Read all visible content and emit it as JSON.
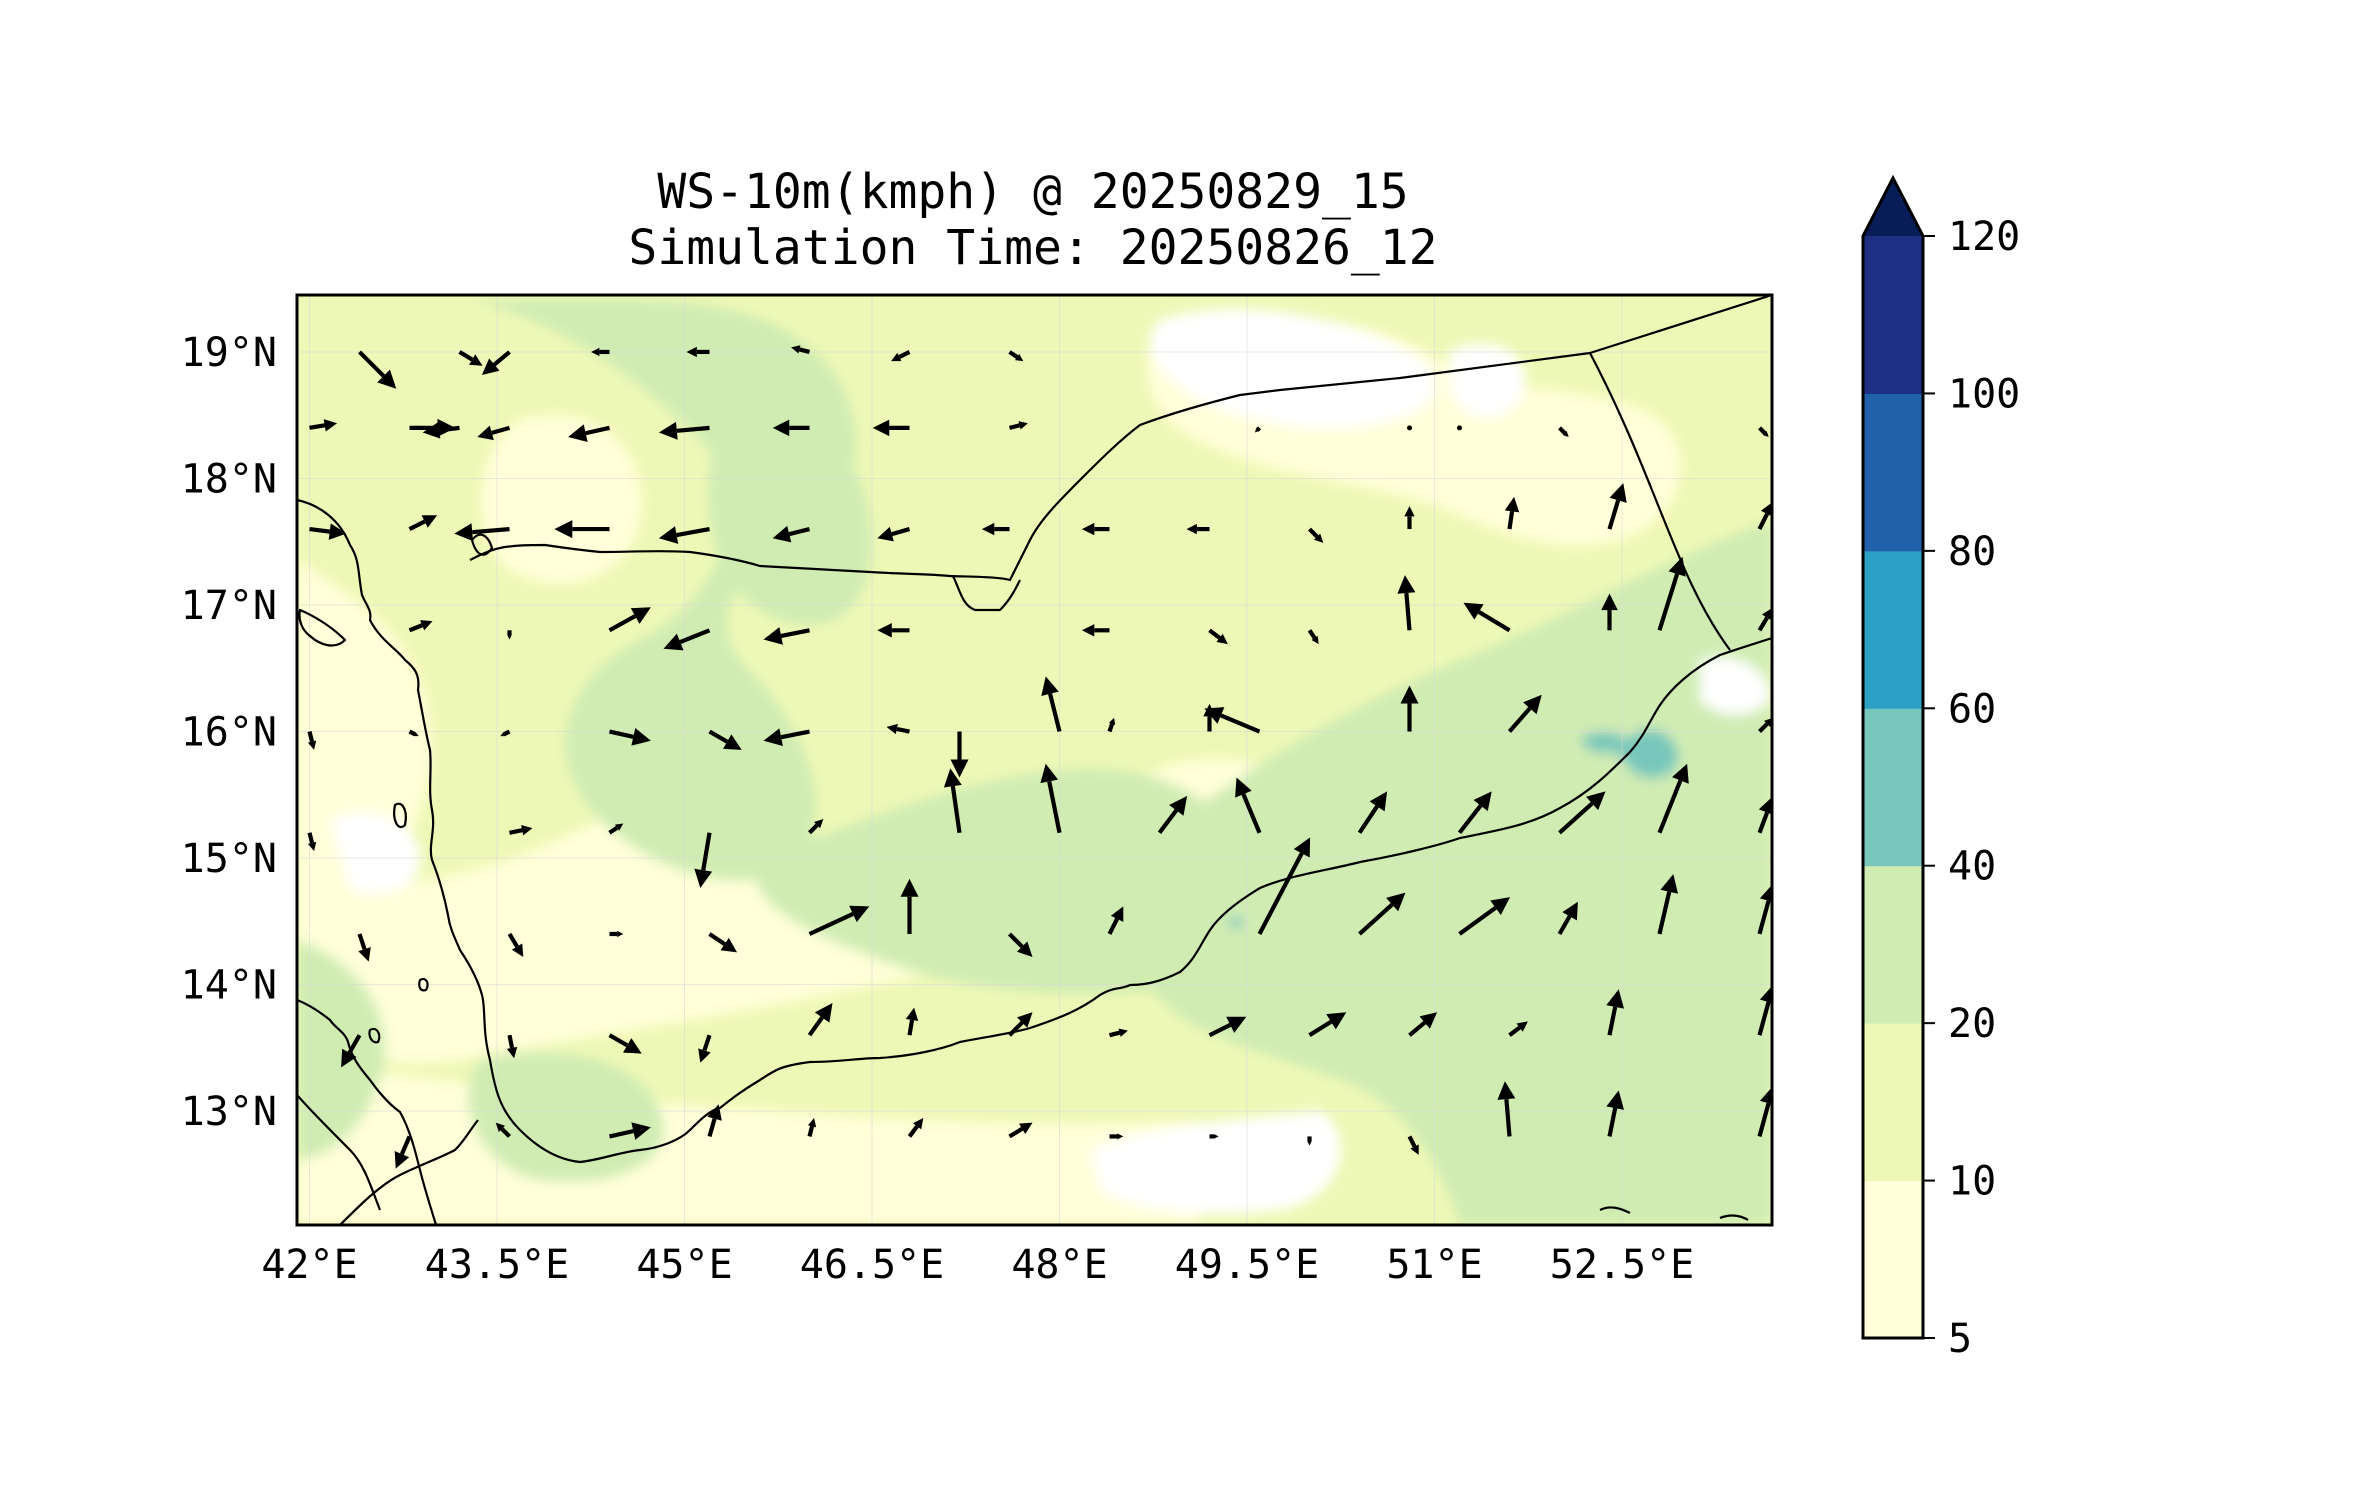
{
  "title": {
    "line1": "WS-10m(kmph) @ 20250829_15",
    "line2": "Simulation Time: 20250826_12"
  },
  "map": {
    "lon_range": [
      41.9,
      53.7
    ],
    "lat_range": [
      12.1,
      19.45
    ],
    "x_ticks": [
      {
        "value": 42.0,
        "label": "42°E"
      },
      {
        "value": 43.5,
        "label": "43.5°E"
      },
      {
        "value": 45.0,
        "label": "45°E"
      },
      {
        "value": 46.5,
        "label": "46.5°E"
      },
      {
        "value": 48.0,
        "label": "48°E"
      },
      {
        "value": 49.5,
        "label": "49.5°E"
      },
      {
        "value": 51.0,
        "label": "51°E"
      },
      {
        "value": 52.5,
        "label": "52.5°E"
      }
    ],
    "y_ticks": [
      {
        "value": 19.0,
        "label": "19°N"
      },
      {
        "value": 18.0,
        "label": "18°N"
      },
      {
        "value": 17.0,
        "label": "17°N"
      },
      {
        "value": 16.0,
        "label": "16°N"
      },
      {
        "value": 15.0,
        "label": "15°N"
      },
      {
        "value": 14.0,
        "label": "14°N"
      },
      {
        "value": 13.0,
        "label": "13°N"
      }
    ]
  },
  "colorbar": {
    "levels": [
      "5",
      "10",
      "20",
      "40",
      "60",
      "80",
      "100",
      "120"
    ],
    "colors": [
      "#ffffd9",
      "#eef8b6",
      "#d0ecb3",
      "#78c7bc",
      "#2ca1c6",
      "#2161ab",
      "#1d2e83"
    ],
    "extend_color": "#081d58"
  },
  "colors": {
    "land_base": "#eef8b6",
    "calm": "#ffffff",
    "light": "#ffffd9",
    "moderate": "#d0ecb3",
    "strong": "#78c7bc",
    "border": "#000000"
  },
  "chart_data": {
    "type": "vector-field",
    "title": "WS-10m(kmph) @ 20250829_15 / Simulation Time: 20250826_12",
    "quantity": "10 m wind speed (kmph), filled contours + wind vectors",
    "vector_lons": [
      42.0,
      42.4,
      42.8,
      43.2,
      43.6,
      44.0,
      44.4,
      44.8,
      45.2,
      45.6,
      46.0,
      46.4,
      46.8,
      47.2,
      47.6,
      48.0,
      48.4,
      48.8,
      49.2,
      49.6,
      50.0,
      50.4,
      50.8,
      51.2,
      51.6,
      52.0,
      52.4,
      52.8,
      53.2,
      53.6
    ],
    "vector_lats": [
      19.0,
      18.4,
      17.6,
      16.8,
      16.0,
      15.2,
      14.4,
      13.6,
      12.8
    ],
    "vectors": [
      {
        "lon": 42.4,
        "lat": 19.0,
        "u": 8,
        "v": -8
      },
      {
        "lon": 43.2,
        "lat": 19.0,
        "u": 5,
        "v": -3
      },
      {
        "lon": 43.6,
        "lat": 19.0,
        "u": -6,
        "v": -5
      },
      {
        "lon": 44.4,
        "lat": 19.0,
        "u": -4,
        "v": 0
      },
      {
        "lon": 45.2,
        "lat": 19.0,
        "u": -5,
        "v": 0
      },
      {
        "lon": 46.0,
        "lat": 19.0,
        "u": -4,
        "v": 1
      },
      {
        "lon": 46.8,
        "lat": 19.0,
        "u": -4,
        "v": -2
      },
      {
        "lon": 47.6,
        "lat": 19.0,
        "u": 3,
        "v": -2
      },
      {
        "lon": 42.0,
        "lat": 18.4,
        "u": 6,
        "v": 1
      },
      {
        "lon": 42.8,
        "lat": 18.4,
        "u": 10,
        "v": 0
      },
      {
        "lon": 43.2,
        "lat": 18.4,
        "u": -8,
        "v": -1
      },
      {
        "lon": 43.6,
        "lat": 18.4,
        "u": -7,
        "v": -2
      },
      {
        "lon": 44.4,
        "lat": 18.4,
        "u": -9,
        "v": -2
      },
      {
        "lon": 45.2,
        "lat": 18.4,
        "u": -11,
        "v": -1
      },
      {
        "lon": 46.0,
        "lat": 18.4,
        "u": -8,
        "v": 0
      },
      {
        "lon": 46.8,
        "lat": 18.4,
        "u": -8,
        "v": 0
      },
      {
        "lon": 47.6,
        "lat": 18.4,
        "u": 4,
        "v": 1
      },
      {
        "lon": 49.6,
        "lat": 18.4,
        "u": -1,
        "v": -1
      },
      {
        "lon": 50.8,
        "lat": 18.4,
        "u": 0,
        "v": 0
      },
      {
        "lon": 51.2,
        "lat": 18.4,
        "u": 0,
        "v": 0
      },
      {
        "lon": 52.0,
        "lat": 18.4,
        "u": 2,
        "v": -2
      },
      {
        "lon": 53.6,
        "lat": 18.4,
        "u": 2,
        "v": -2
      },
      {
        "lon": 42.0,
        "lat": 17.6,
        "u": 8,
        "v": -1
      },
      {
        "lon": 42.8,
        "lat": 17.6,
        "u": 6,
        "v": 3
      },
      {
        "lon": 43.6,
        "lat": 17.6,
        "u": -12,
        "v": -1
      },
      {
        "lon": 44.4,
        "lat": 17.6,
        "u": -12,
        "v": 0
      },
      {
        "lon": 45.2,
        "lat": 17.6,
        "u": -11,
        "v": -2
      },
      {
        "lon": 46.0,
        "lat": 17.6,
        "u": -8,
        "v": -2
      },
      {
        "lon": 46.8,
        "lat": 17.6,
        "u": -7,
        "v": -2
      },
      {
        "lon": 47.6,
        "lat": 17.6,
        "u": -6,
        "v": 0
      },
      {
        "lon": 48.4,
        "lat": 17.6,
        "u": -6,
        "v": 0
      },
      {
        "lon": 49.2,
        "lat": 17.6,
        "u": -5,
        "v": 0
      },
      {
        "lon": 50.0,
        "lat": 17.6,
        "u": 3,
        "v": -3
      },
      {
        "lon": 50.8,
        "lat": 17.6,
        "u": 0,
        "v": 5
      },
      {
        "lon": 51.6,
        "lat": 17.6,
        "u": 1,
        "v": 7
      },
      {
        "lon": 52.4,
        "lat": 17.6,
        "u": 3,
        "v": 10
      },
      {
        "lon": 53.6,
        "lat": 17.6,
        "u": 3,
        "v": 6
      },
      {
        "lon": 42.8,
        "lat": 16.8,
        "u": 5,
        "v": 2
      },
      {
        "lon": 43.6,
        "lat": 16.8,
        "u": 0,
        "v": -2
      },
      {
        "lon": 44.4,
        "lat": 16.8,
        "u": 9,
        "v": 5
      },
      {
        "lon": 45.2,
        "lat": 16.8,
        "u": -10,
        "v": -4
      },
      {
        "lon": 46.0,
        "lat": 16.8,
        "u": -10,
        "v": -2
      },
      {
        "lon": 46.8,
        "lat": 16.8,
        "u": -7,
        "v": 0
      },
      {
        "lon": 48.4,
        "lat": 16.8,
        "u": -6,
        "v": 0
      },
      {
        "lon": 49.2,
        "lat": 16.8,
        "u": 4,
        "v": -3
      },
      {
        "lon": 50.0,
        "lat": 16.8,
        "u": 2,
        "v": -3
      },
      {
        "lon": 50.8,
        "lat": 16.8,
        "u": -1,
        "v": 12
      },
      {
        "lon": 51.6,
        "lat": 16.8,
        "u": -10,
        "v": 6
      },
      {
        "lon": 52.4,
        "lat": 16.8,
        "u": 0,
        "v": 8
      },
      {
        "lon": 52.8,
        "lat": 16.8,
        "u": 5,
        "v": 16
      },
      {
        "lon": 53.6,
        "lat": 16.8,
        "u": 3,
        "v": 5
      },
      {
        "lon": 42.0,
        "lat": 16.0,
        "u": 1,
        "v": -4
      },
      {
        "lon": 42.8,
        "lat": 16.0,
        "u": 2,
        "v": -1
      },
      {
        "lon": 43.6,
        "lat": 16.0,
        "u": -2,
        "v": -1
      },
      {
        "lon": 44.4,
        "lat": 16.0,
        "u": 9,
        "v": -2
      },
      {
        "lon": 45.2,
        "lat": 16.0,
        "u": 7,
        "v": -4
      },
      {
        "lon": 46.0,
        "lat": 16.0,
        "u": -10,
        "v": -2
      },
      {
        "lon": 46.8,
        "lat": 16.0,
        "u": -5,
        "v": 1
      },
      {
        "lon": 47.2,
        "lat": 16.0,
        "u": 0,
        "v": -10
      },
      {
        "lon": 48.0,
        "lat": 16.0,
        "u": -3,
        "v": 12
      },
      {
        "lon": 48.4,
        "lat": 16.0,
        "u": 1,
        "v": 3
      },
      {
        "lon": 49.2,
        "lat": 16.0,
        "u": 0,
        "v": 6
      },
      {
        "lon": 49.6,
        "lat": 16.0,
        "u": -12,
        "v": 5
      },
      {
        "lon": 50.8,
        "lat": 16.0,
        "u": 0,
        "v": 10
      },
      {
        "lon": 51.6,
        "lat": 16.0,
        "u": 7,
        "v": 8
      },
      {
        "lon": 53.6,
        "lat": 16.0,
        "u": 3,
        "v": 3
      },
      {
        "lon": 42.0,
        "lat": 15.2,
        "u": 1,
        "v": -4
      },
      {
        "lon": 43.6,
        "lat": 15.2,
        "u": 5,
        "v": 1
      },
      {
        "lon": 44.4,
        "lat": 15.2,
        "u": 3,
        "v": 2
      },
      {
        "lon": 45.2,
        "lat": 15.2,
        "u": -2,
        "v": -12
      },
      {
        "lon": 46.0,
        "lat": 15.2,
        "u": 3,
        "v": 3
      },
      {
        "lon": 47.2,
        "lat": 15.2,
        "u": -2,
        "v": 14
      },
      {
        "lon": 48.0,
        "lat": 15.2,
        "u": -3,
        "v": 15
      },
      {
        "lon": 48.8,
        "lat": 15.2,
        "u": 6,
        "v": 8
      },
      {
        "lon": 49.6,
        "lat": 15.2,
        "u": -5,
        "v": 12
      },
      {
        "lon": 50.4,
        "lat": 15.2,
        "u": 6,
        "v": 9
      },
      {
        "lon": 51.2,
        "lat": 15.2,
        "u": 7,
        "v": 9
      },
      {
        "lon": 52.0,
        "lat": 15.2,
        "u": 10,
        "v": 9
      },
      {
        "lon": 52.8,
        "lat": 15.2,
        "u": 6,
        "v": 15
      },
      {
        "lon": 53.6,
        "lat": 15.2,
        "u": 3,
        "v": 8
      },
      {
        "lon": 42.4,
        "lat": 14.4,
        "u": 2,
        "v": -6
      },
      {
        "lon": 43.6,
        "lat": 14.4,
        "u": 3,
        "v": -5
      },
      {
        "lon": 44.4,
        "lat": 14.4,
        "u": 3,
        "v": 0
      },
      {
        "lon": 45.2,
        "lat": 14.4,
        "u": 6,
        "v": -4
      },
      {
        "lon": 46.0,
        "lat": 14.4,
        "u": 13,
        "v": 6
      },
      {
        "lon": 46.8,
        "lat": 14.4,
        "u": 0,
        "v": 12
      },
      {
        "lon": 47.6,
        "lat": 14.4,
        "u": 5,
        "v": -5
      },
      {
        "lon": 48.4,
        "lat": 14.4,
        "u": 3,
        "v": 6
      },
      {
        "lon": 49.6,
        "lat": 14.4,
        "u": 11,
        "v": 21
      },
      {
        "lon": 50.4,
        "lat": 14.4,
        "u": 10,
        "v": 9
      },
      {
        "lon": 51.2,
        "lat": 14.4,
        "u": 11,
        "v": 8
      },
      {
        "lon": 52.0,
        "lat": 14.4,
        "u": 4,
        "v": 7
      },
      {
        "lon": 52.8,
        "lat": 14.4,
        "u": 3,
        "v": 13
      },
      {
        "lon": 53.6,
        "lat": 14.4,
        "u": 3,
        "v": 11
      },
      {
        "lon": 42.4,
        "lat": 13.6,
        "u": -4,
        "v": -7
      },
      {
        "lon": 43.6,
        "lat": 13.6,
        "u": 1,
        "v": -5
      },
      {
        "lon": 44.4,
        "lat": 13.6,
        "u": 7,
        "v": -4
      },
      {
        "lon": 45.2,
        "lat": 13.6,
        "u": -2,
        "v": -6
      },
      {
        "lon": 46.0,
        "lat": 13.6,
        "u": 5,
        "v": 7
      },
      {
        "lon": 46.8,
        "lat": 13.6,
        "u": 1,
        "v": 6
      },
      {
        "lon": 47.6,
        "lat": 13.6,
        "u": 5,
        "v": 5
      },
      {
        "lon": 48.4,
        "lat": 13.6,
        "u": 4,
        "v": 1
      },
      {
        "lon": 49.2,
        "lat": 13.6,
        "u": 8,
        "v": 4
      },
      {
        "lon": 50.0,
        "lat": 13.6,
        "u": 8,
        "v": 5
      },
      {
        "lon": 50.8,
        "lat": 13.6,
        "u": 6,
        "v": 5
      },
      {
        "lon": 51.6,
        "lat": 13.6,
        "u": 4,
        "v": 3
      },
      {
        "lon": 52.4,
        "lat": 13.6,
        "u": 2,
        "v": 10
      },
      {
        "lon": 53.6,
        "lat": 13.6,
        "u": 3,
        "v": 11
      },
      {
        "lon": 42.8,
        "lat": 12.8,
        "u": -3,
        "v": -7
      },
      {
        "lon": 43.6,
        "lat": 12.8,
        "u": -3,
        "v": 3
      },
      {
        "lon": 44.4,
        "lat": 12.8,
        "u": 9,
        "v": 2
      },
      {
        "lon": 45.2,
        "lat": 12.8,
        "u": 2,
        "v": 7
      },
      {
        "lon": 46.0,
        "lat": 12.8,
        "u": 1,
        "v": 4
      },
      {
        "lon": 46.8,
        "lat": 12.8,
        "u": 3,
        "v": 4
      },
      {
        "lon": 47.6,
        "lat": 12.8,
        "u": 5,
        "v": 3
      },
      {
        "lon": 48.4,
        "lat": 12.8,
        "u": 3,
        "v": 0
      },
      {
        "lon": 49.2,
        "lat": 12.8,
        "u": 2,
        "v": 0
      },
      {
        "lon": 50.0,
        "lat": 12.8,
        "u": 0,
        "v": -2
      },
      {
        "lon": 50.8,
        "lat": 12.8,
        "u": 2,
        "v": -4
      },
      {
        "lon": 51.6,
        "lat": 12.8,
        "u": -1,
        "v": 12
      },
      {
        "lon": 52.4,
        "lat": 12.8,
        "u": 2,
        "v": 10
      },
      {
        "lon": 53.6,
        "lat": 12.8,
        "u": 3,
        "v": 11
      }
    ]
  }
}
